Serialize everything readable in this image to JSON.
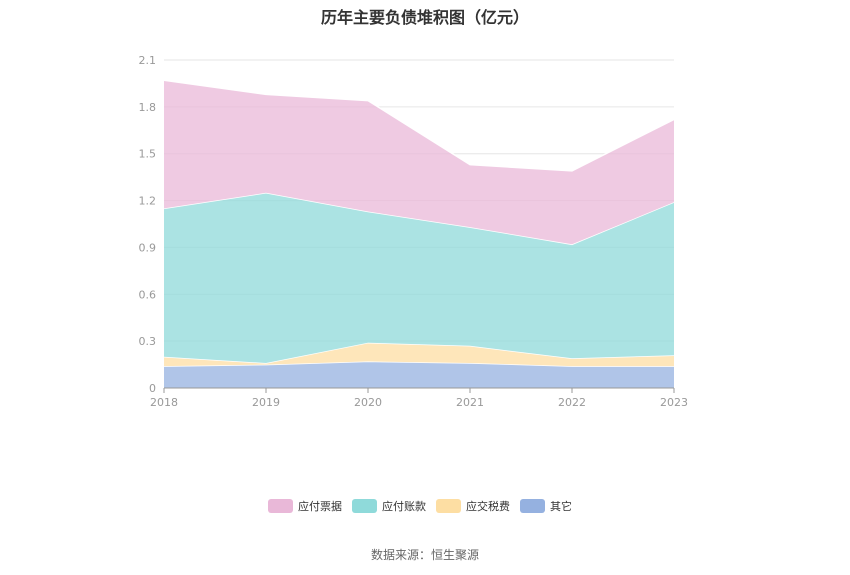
{
  "chart_data": {
    "type": "area",
    "title": "历年主要负债堆积图（亿元）",
    "categories": [
      "2018",
      "2019",
      "2020",
      "2021",
      "2022",
      "2023"
    ],
    "ylim": [
      0,
      2.1
    ],
    "yticks": [
      "0",
      "0.3",
      "0.6",
      "0.9",
      "1.2",
      "1.5",
      "1.8",
      "2.1"
    ],
    "stacked": true,
    "grid": true,
    "legend_position": "bottom",
    "series": [
      {
        "name": "其它",
        "color": "#95b1e0",
        "values": [
          0.14,
          0.15,
          0.17,
          0.16,
          0.14,
          0.14
        ]
      },
      {
        "name": "应交税费",
        "color": "#fddea3",
        "values": [
          0.06,
          0.01,
          0.12,
          0.11,
          0.05,
          0.07
        ]
      },
      {
        "name": "应付账款",
        "color": "#8fdada",
        "values": [
          0.95,
          1.09,
          0.84,
          0.76,
          0.73,
          0.98
        ]
      },
      {
        "name": "应付票据",
        "color": "#e9b8d8",
        "values": [
          0.82,
          0.63,
          0.71,
          0.4,
          0.47,
          0.53
        ]
      }
    ],
    "legend_order": [
      "应付票据",
      "应付账款",
      "应交税费",
      "其它"
    ]
  },
  "footer": {
    "source": "数据来源：恒生聚源"
  }
}
